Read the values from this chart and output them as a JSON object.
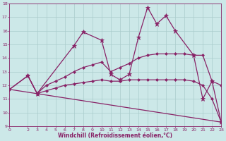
{
  "xlabel": "Windchill (Refroidissement éolien,°C)",
  "bg_color": "#cce8e8",
  "line_color": "#882266",
  "grid_color": "#aacccc",
  "xlim": [
    0,
    23
  ],
  "ylim": [
    9,
    18
  ],
  "xticks": [
    0,
    2,
    3,
    4,
    5,
    6,
    7,
    8,
    9,
    10,
    11,
    12,
    13,
    14,
    15,
    16,
    17,
    18,
    19,
    20,
    21,
    22,
    23
  ],
  "yticks": [
    9,
    10,
    11,
    12,
    13,
    14,
    15,
    16,
    17,
    18
  ],
  "series": [
    {
      "x": [
        0,
        23
      ],
      "y": [
        11.7,
        9.3
      ],
      "marker": null,
      "markersize": 0,
      "linewidth": 0.9
    },
    {
      "x": [
        0,
        2,
        3,
        4,
        5,
        6,
        7,
        8,
        9,
        10,
        11,
        12,
        13,
        14,
        15,
        16,
        17,
        18,
        19,
        20,
        21,
        22,
        23
      ],
      "y": [
        11.7,
        12.7,
        11.4,
        11.6,
        11.8,
        12.0,
        12.1,
        12.2,
        12.3,
        12.4,
        12.3,
        12.3,
        12.4,
        12.4,
        12.4,
        12.4,
        12.4,
        12.4,
        12.4,
        12.3,
        12.0,
        11.0,
        9.3
      ],
      "marker": "D",
      "markersize": 2.0,
      "linewidth": 0.9
    },
    {
      "x": [
        0,
        2,
        3,
        4,
        5,
        6,
        7,
        8,
        9,
        10,
        11,
        12,
        13,
        14,
        15,
        16,
        17,
        18,
        19,
        20,
        21,
        22,
        23
      ],
      "y": [
        11.7,
        12.7,
        11.4,
        12.0,
        12.3,
        12.6,
        13.0,
        13.3,
        13.5,
        13.7,
        13.0,
        13.3,
        13.6,
        14.0,
        14.2,
        14.3,
        14.3,
        14.3,
        14.3,
        14.2,
        14.2,
        12.3,
        12.0
      ],
      "marker": "D",
      "markersize": 2.0,
      "linewidth": 0.9
    },
    {
      "x": [
        2,
        3,
        7,
        8,
        10,
        11,
        12,
        13,
        14,
        15,
        16,
        17,
        18,
        20,
        21,
        22,
        23
      ],
      "y": [
        12.7,
        11.4,
        14.9,
        15.9,
        15.3,
        12.8,
        12.4,
        12.8,
        15.5,
        17.7,
        16.5,
        17.1,
        16.0,
        14.2,
        11.0,
        12.3,
        9.3
      ],
      "marker": "*",
      "markersize": 4.5,
      "linewidth": 0.9
    }
  ]
}
